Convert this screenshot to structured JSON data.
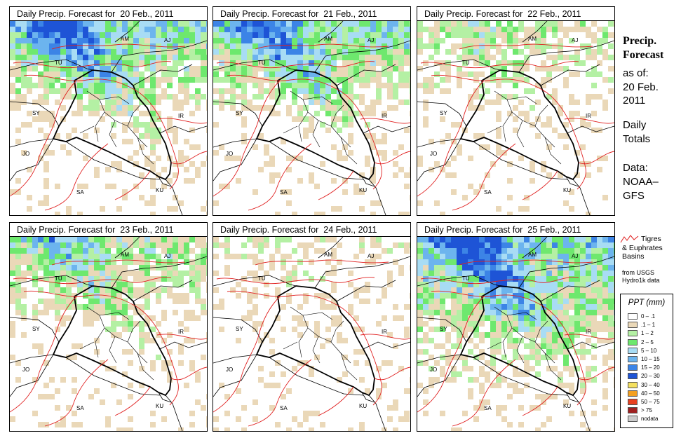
{
  "panels": [
    {
      "title": "Daily Precip. Forecast for  20 Feb., 2011",
      "level": 0.85,
      "offset": 0
    },
    {
      "title": "Daily Precip. Forecast for  21 Feb., 2011",
      "level": 0.8,
      "offset": 1
    },
    {
      "title": "Daily Precip. Forecast for  22 Feb., 2011",
      "level": 0.35,
      "offset": 2
    },
    {
      "title": "Daily Precip. Forecast for  23 Feb., 2011",
      "level": 0.55,
      "offset": 3
    },
    {
      "title": "Daily Precip. Forecast for  24 Feb., 2011",
      "level": 0.15,
      "offset": 4
    },
    {
      "title": "Daily Precip. Forecast for  25 Feb., 2011",
      "level": 0.9,
      "offset": 5
    }
  ],
  "country_labels": [
    "AM",
    "AJ",
    "TU",
    "SY",
    "IR",
    "JO",
    "SA",
    "KU"
  ],
  "right_text": {
    "heading_1": "Precip.",
    "heading_2": "Forecast",
    "as_of": "as of:",
    "date_1": "20 Feb.",
    "date_2": "2011",
    "daily_1": "Daily",
    "daily_2": "Totals",
    "data_1": "Data:",
    "data_2": "NOAA–",
    "data_3": "GFS"
  },
  "basin_legend": {
    "line1": "Tigres",
    "line2": "& Euphrates\nBasins",
    "line3": "from USGS\nHydro1k data",
    "color": "#e02020"
  },
  "ppt_legend": {
    "title": "PPT (mm)",
    "items": [
      {
        "label": "0 – .1",
        "color": "#ffffff"
      },
      {
        "label": ".1 – 1",
        "color": "#ead8b8"
      },
      {
        "label": "1 – 2",
        "color": "#b4f0a4"
      },
      {
        "label": "2 – 5",
        "color": "#6ee86e"
      },
      {
        "label": "5 – 10",
        "color": "#a8dcf4"
      },
      {
        "label": "10 – 15",
        "color": "#6cb4ee"
      },
      {
        "label": "15 – 20",
        "color": "#3c84e6"
      },
      {
        "label": "20 – 30",
        "color": "#1e54d6"
      },
      {
        "label": "30 – 40",
        "color": "#f4e060"
      },
      {
        "label": "40 – 50",
        "color": "#f4a020"
      },
      {
        "label": "50 – 75",
        "color": "#e84020"
      },
      {
        "label": "> 75",
        "color": "#a02020"
      },
      {
        "label": "nodata",
        "color": "#cccccc"
      }
    ]
  }
}
